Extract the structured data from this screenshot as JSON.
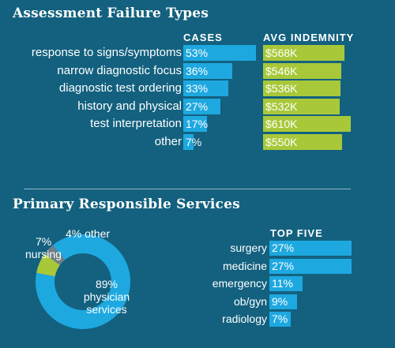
{
  "chart_data": [
    {
      "type": "bar",
      "title": "Assessment Failure Types",
      "categories": [
        "response to signs/symptoms",
        "narrow diagnostic focus",
        "diagnostic test ordering",
        "history and physical",
        "test interpretation",
        "other"
      ],
      "series": [
        {
          "name": "CASES",
          "values": [
            53,
            36,
            33,
            27,
            17,
            7
          ],
          "labels": [
            "53%",
            "36%",
            "33%",
            "27%",
            "17%",
            "7%"
          ]
        },
        {
          "name": "AVG INDEMNITY",
          "values": [
            568,
            546,
            536,
            532,
            610,
            550
          ],
          "labels": [
            "$568K",
            "$546K",
            "$536K",
            "$532K",
            "$610K",
            "$550K"
          ]
        }
      ]
    },
    {
      "type": "pie",
      "title": "Primary Responsible Services",
      "slices": [
        {
          "label": "physician services",
          "value": 89,
          "pct_label": "89%",
          "color": "#1ea8e0"
        },
        {
          "label": "nursing",
          "value": 7,
          "pct_label": "7%",
          "color": "#a8c83a"
        },
        {
          "label": "other",
          "value": 4,
          "pct_label": "4%",
          "color": "#6d7f87"
        }
      ]
    },
    {
      "type": "bar",
      "title": "TOP FIVE",
      "categories": [
        "surgery",
        "medicine",
        "emergency",
        "ob/gyn",
        "radiology"
      ],
      "values": [
        27,
        27,
        11,
        9,
        7
      ],
      "labels": [
        "27%",
        "27%",
        "11%",
        "9%",
        "7%"
      ]
    }
  ],
  "colors": {
    "background": "#13617f",
    "cases_bar": "#1ea8e0",
    "indemnity_bar": "#a8c83a",
    "other_slice": "#6d7f87"
  }
}
